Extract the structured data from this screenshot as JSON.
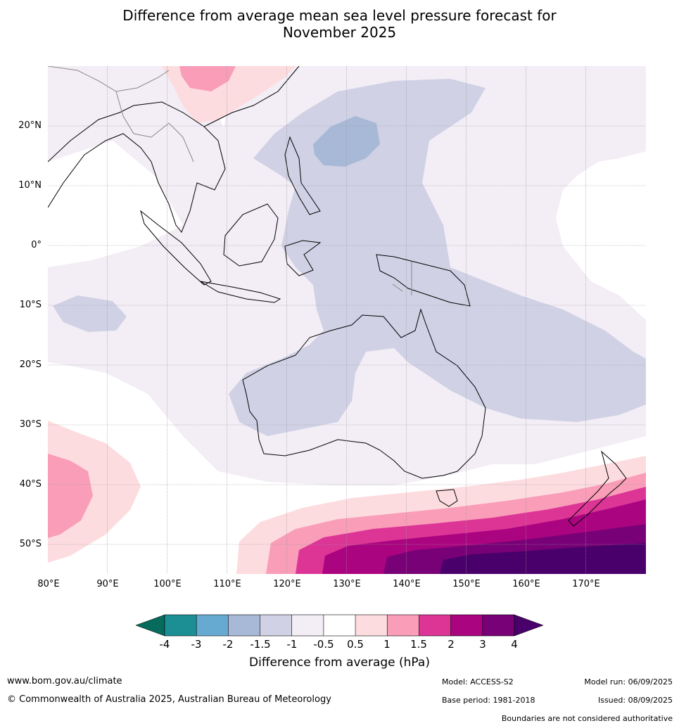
{
  "title": {
    "line1": "Difference from average mean sea level pressure forecast for",
    "line2": "November 2025"
  },
  "map": {
    "lat_labels": [
      "20°N",
      "10°N",
      "0°",
      "10°S",
      "20°S",
      "30°S",
      "40°S",
      "50°S"
    ],
    "lon_labels": [
      "80°E",
      "90°E",
      "100°E",
      "110°E",
      "120°E",
      "130°E",
      "140°E",
      "150°E",
      "160°E",
      "170°E"
    ],
    "extent": {
      "lon_min": 80,
      "lon_max": 180,
      "lat_min": -55,
      "lat_max": 30
    },
    "coastline_color": "#000000",
    "border_color": "#888888",
    "gridline_color": "#999999"
  },
  "colorbar": {
    "tick_labels": [
      "-4",
      "-3",
      "-2",
      "-1.5",
      "-1",
      "-0.5",
      "0.5",
      "1",
      "1.5",
      "2",
      "3",
      "4"
    ],
    "colors": [
      "#1b8f94",
      "#67aad1",
      "#a7b9d6",
      "#d0d1e5",
      "#f3edf5",
      "#ffffff",
      "#fddcdf",
      "#f99db8",
      "#dc3596",
      "#ab0480",
      "#780177"
    ],
    "under_color": "#066b5d",
    "over_color": "#49006a",
    "label": "Difference from average (hPa)"
  },
  "footer": {
    "website": "www.bom.gov.au/climate",
    "copyright": "© Commonwealth of Australia 2025, Australian Bureau of Meteorology",
    "model": "Model: ACCESS-S2",
    "base_period": "Base period: 1981-2018",
    "model_run": "Model run: 06/09/2025",
    "issued": "Issued: 08/09/2025",
    "disclaimer": "Boundaries are not considered authoritative"
  }
}
